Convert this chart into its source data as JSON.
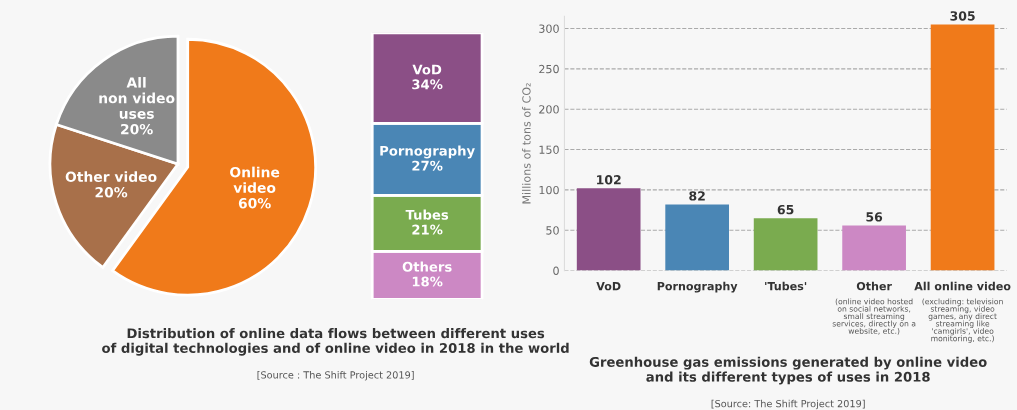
{
  "chart_data": [
    {
      "type": "pie",
      "title": "Distribution of online data flows between different uses\nof digital technologies and of online video in 2018 in the world",
      "annotations": [
        "[Source : The Shift Project 2019]"
      ],
      "categories": [
        "Online\nvideo",
        "Other video",
        "All\nnon video\nuses"
      ],
      "values": [
        60,
        20,
        20
      ],
      "value_labels": [
        "60%",
        "20%",
        "20%"
      ],
      "colors": [
        "#f07a1a",
        "#a8704a",
        "#8a8a8a"
      ]
    },
    {
      "type": "bar",
      "stacked": true,
      "tick_labels": false,
      "ylim": [
        0,
        100
      ],
      "categories": [
        null
      ],
      "series": [
        {
          "name": "Others",
          "color": "#cc88c4",
          "values": [
            18
          ],
          "value_labels": [
            "18%"
          ]
        },
        {
          "name": "Tubes",
          "color": "#7aab4f",
          "values": [
            21
          ],
          "value_labels": [
            "21%"
          ]
        },
        {
          "name": "Pornography",
          "color": "#4a86b5",
          "values": [
            27
          ],
          "value_labels": [
            "27%"
          ]
        },
        {
          "name": "VoD",
          "color": "#8b4f86",
          "values": [
            34
          ],
          "value_labels": [
            "34%"
          ]
        }
      ]
    },
    {
      "type": "bar",
      "title": "Greenhouse gas emissions generated by online video\nand its different types of uses in 2018",
      "annotations": [
        "[Source: The Shift Project 2019]"
      ],
      "ylabel": "Millions of tons of CO₂",
      "categories": [
        "VoD",
        "Pornography",
        "'Tubes'",
        "Other\n(online video hosted\non social networks,\nsmall streaming\nservices, directly on a\nwebsite, etc.)",
        "All online video\n(excluding: television\nstreaming, video\ngames, any direct\nstreaming like\n'camgirls', video\nmonitoring, etc.)"
      ],
      "values": [
        102,
        82,
        65,
        56,
        305
      ],
      "colors": [
        "#8b4f86",
        "#4a86b5",
        "#7aab4f",
        "#cc88c4",
        "#f07a1a"
      ],
      "data_labels": true,
      "ylim": [
        0,
        315
      ],
      "yticks": [
        0,
        50,
        100,
        150,
        200,
        250,
        300
      ],
      "grid": "y",
      "line_style": "dashed"
    }
  ]
}
